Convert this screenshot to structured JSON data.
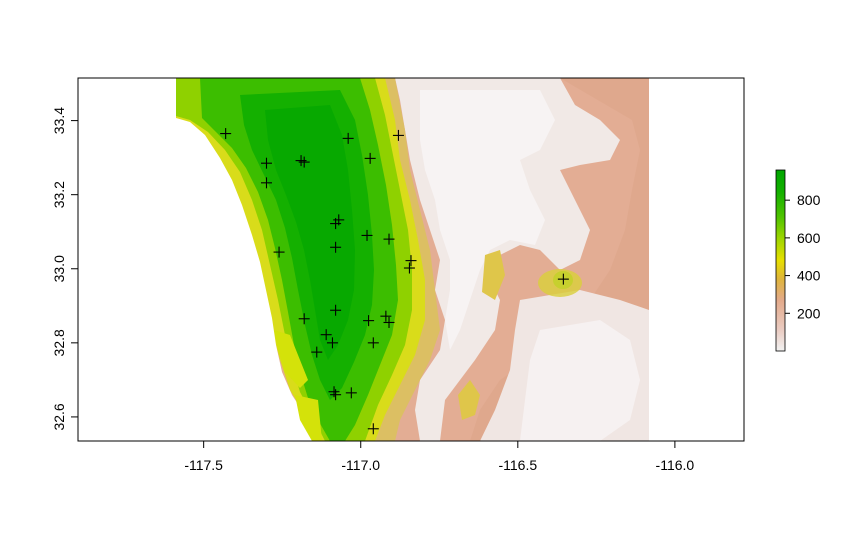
{
  "x_axis": {
    "range": [
      -117.9,
      -115.78
    ],
    "ticks": [
      {
        "value": -117.5,
        "label": "-117.5"
      },
      {
        "value": -117.0,
        "label": "-117.0"
      },
      {
        "value": -116.5,
        "label": "-116.5"
      },
      {
        "value": -116.0,
        "label": "-116.0"
      }
    ]
  },
  "y_axis": {
    "range": [
      32.535,
      33.515
    ],
    "ticks": [
      {
        "value": 32.6,
        "label": "32.6"
      },
      {
        "value": 32.8,
        "label": "32.8"
      },
      {
        "value": 33.0,
        "label": "33.0"
      },
      {
        "value": 33.2,
        "label": "33.2"
      },
      {
        "value": 33.4,
        "label": "33.4"
      }
    ]
  },
  "raster": {
    "extent": {
      "xmin": -117.6,
      "xmax": -116.08,
      "ymin": 32.535,
      "ymax": 33.515
    },
    "value_range": [
      0,
      960
    ],
    "color_scale": [
      "#f2f2f2",
      "#eacbc1",
      "#e3aa8b",
      "#dfb53a",
      "#e7df00",
      "#9fd600",
      "#4fc300",
      "#13b000",
      "#00a600"
    ]
  },
  "legend": {
    "range": [
      0,
      960
    ],
    "ticks": [
      {
        "value": 200,
        "label": "200"
      },
      {
        "value": 400,
        "label": "400"
      },
      {
        "value": 600,
        "label": "600"
      },
      {
        "value": 800,
        "label": "800"
      }
    ]
  },
  "points": [
    {
      "lon": -117.43,
      "lat": 33.365
    },
    {
      "lon": -117.3,
      "lat": 33.285
    },
    {
      "lon": -117.3,
      "lat": 33.232
    },
    {
      "lon": -117.19,
      "lat": 33.292
    },
    {
      "lon": -117.18,
      "lat": 33.288
    },
    {
      "lon": -117.04,
      "lat": 33.352
    },
    {
      "lon": -116.97,
      "lat": 33.298
    },
    {
      "lon": -116.88,
      "lat": 33.36
    },
    {
      "lon": -117.07,
      "lat": 33.132
    },
    {
      "lon": -117.08,
      "lat": 33.122
    },
    {
      "lon": -116.98,
      "lat": 33.09
    },
    {
      "lon": -116.91,
      "lat": 33.08
    },
    {
      "lon": -117.08,
      "lat": 33.058
    },
    {
      "lon": -117.26,
      "lat": 33.045
    },
    {
      "lon": -116.84,
      "lat": 33.022
    },
    {
      "lon": -116.845,
      "lat": 33.002
    },
    {
      "lon": -116.355,
      "lat": 32.972
    },
    {
      "lon": -117.08,
      "lat": 32.888
    },
    {
      "lon": -117.18,
      "lat": 32.865
    },
    {
      "lon": -116.975,
      "lat": 32.86
    },
    {
      "lon": -116.92,
      "lat": 32.872
    },
    {
      "lon": -116.91,
      "lat": 32.855
    },
    {
      "lon": -117.11,
      "lat": 32.822
    },
    {
      "lon": -117.09,
      "lat": 32.8
    },
    {
      "lon": -116.96,
      "lat": 32.8
    },
    {
      "lon": -117.14,
      "lat": 32.775
    },
    {
      "lon": -117.085,
      "lat": 32.668
    },
    {
      "lon": -117.08,
      "lat": 32.66
    },
    {
      "lon": -117.03,
      "lat": 32.665
    },
    {
      "lon": -116.96,
      "lat": 32.568
    }
  ]
}
